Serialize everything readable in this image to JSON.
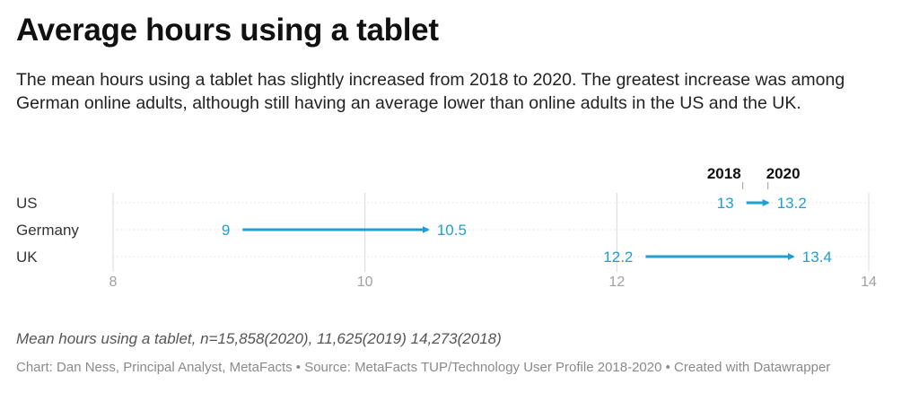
{
  "header": {
    "title": "Average hours using a tablet",
    "description": "The mean hours using a tablet has slightly increased from 2018 to 2020. The greatest increase was among German online adults, although still having an average lower than online adults in the US and the UK."
  },
  "footer": {
    "note": "Mean hours using a tablet, n=15,858(2020), 11,625(2019) 14,273(2018)",
    "credit": "Chart: Dan Ness, Principal Analyst, MetaFacts • Source: MetaFacts TUP/Technology User Profile 2018-2020 • Created with Datawrapper"
  },
  "colors": {
    "arrow": "#1f9fd0",
    "grid": "#d9d9d9",
    "tick": "#a0a0a0",
    "label": "#333333"
  },
  "chart_data": {
    "type": "arrow",
    "title": "Average hours using a tablet",
    "categories": [
      "US",
      "Germany",
      "UK"
    ],
    "series": [
      {
        "name": "2018",
        "values": [
          13,
          9,
          12.2
        ]
      },
      {
        "name": "2020",
        "values": [
          13.2,
          10.5,
          13.4
        ]
      }
    ],
    "start_labels": [
      "13",
      "9",
      "12.2"
    ],
    "end_labels": [
      "13.2",
      "10.5",
      "13.4"
    ],
    "xlim": [
      8,
      14
    ],
    "xticks": [
      8,
      10,
      12,
      14
    ],
    "grid": true,
    "legend": "top, above first row"
  }
}
